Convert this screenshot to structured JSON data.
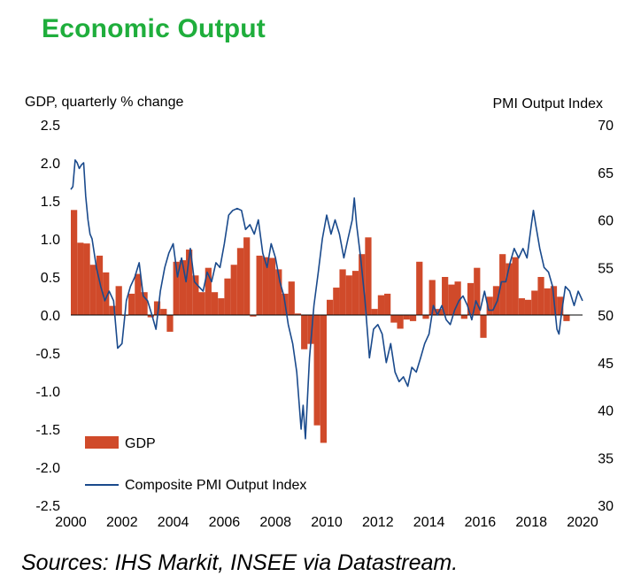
{
  "title": "Economic Output",
  "source": "Sources: IHS Markit, INSEE via Datastream.",
  "chart_data": {
    "type": "bar+line",
    "left_axis_label": "GDP, quarterly % change",
    "right_axis_label": "PMI Output  Index",
    "left_ylim": [
      -2.5,
      2.5
    ],
    "left_ticks": [
      "2.5",
      "2.0",
      "1.5",
      "1.0",
      "0.5",
      "0.0",
      "-0.5",
      "-1.0",
      "-1.5",
      "-2.0",
      "-2.5"
    ],
    "right_ylim": [
      30,
      70
    ],
    "right_ticks": [
      "70",
      "65",
      "60",
      "55",
      "50",
      "45",
      "40",
      "35",
      "30"
    ],
    "x_range": [
      2000,
      2020
    ],
    "x_ticks": [
      "2000",
      "2002",
      "2004",
      "2006",
      "2008",
      "2010",
      "2012",
      "2014",
      "2016",
      "2018",
      "2020"
    ],
    "legend": {
      "gdp": "GDP",
      "pmi": "Composite PMI Output Index"
    },
    "colors": {
      "gdp": "#d04a2a",
      "pmi": "#1a4a8c",
      "title": "#1fae3c"
    },
    "gdp_series": {
      "name": "GDP",
      "start": 2000.0,
      "step": 0.25,
      "values": [
        1.38,
        0.95,
        0.94,
        0.66,
        0.78,
        0.56,
        0.12,
        0.38,
        0.0,
        0.28,
        0.54,
        0.3,
        -0.03,
        0.18,
        0.08,
        -0.22,
        0.7,
        0.72,
        0.86,
        0.52,
        0.3,
        0.62,
        0.3,
        0.22,
        0.48,
        0.66,
        0.88,
        1.02,
        -0.02,
        0.78,
        0.76,
        0.75,
        0.6,
        0.28,
        0.44,
        0.02,
        -0.45,
        -0.38,
        -1.45,
        -1.68,
        0.2,
        0.36,
        0.6,
        0.52,
        0.58,
        0.8,
        1.02,
        0.08,
        0.26,
        0.28,
        -0.1,
        -0.18,
        -0.06,
        -0.08,
        0.7,
        -0.05,
        0.46,
        0.08,
        0.5,
        0.4,
        0.44,
        -0.05,
        0.42,
        0.62,
        -0.3,
        0.24,
        0.38,
        0.8,
        0.68,
        0.76,
        0.22,
        0.2,
        0.32,
        0.5,
        0.35,
        0.38,
        0.24,
        -0.08
      ]
    },
    "pmi_series": {
      "name": "Composite PMI Output Index",
      "x": [
        2000.0,
        2000.08,
        2000.17,
        2000.25,
        2000.33,
        2000.42,
        2000.5,
        2000.58,
        2000.67,
        2000.75,
        2000.83,
        2001.0,
        2001.17,
        2001.33,
        2001.5,
        2001.67,
        2001.83,
        2002.0,
        2002.17,
        2002.33,
        2002.5,
        2002.67,
        2002.83,
        2003.0,
        2003.17,
        2003.33,
        2003.5,
        2003.67,
        2003.83,
        2004.0,
        2004.17,
        2004.33,
        2004.5,
        2004.67,
        2004.83,
        2005.0,
        2005.17,
        2005.33,
        2005.5,
        2005.67,
        2005.83,
        2006.0,
        2006.17,
        2006.33,
        2006.5,
        2006.67,
        2006.83,
        2007.0,
        2007.17,
        2007.33,
        2007.5,
        2007.67,
        2007.83,
        2008.0,
        2008.17,
        2008.33,
        2008.5,
        2008.67,
        2008.83,
        2009.0,
        2009.08,
        2009.17,
        2009.33,
        2009.5,
        2009.67,
        2009.83,
        2010.0,
        2010.17,
        2010.33,
        2010.5,
        2010.67,
        2010.83,
        2011.0,
        2011.08,
        2011.17,
        2011.33,
        2011.5,
        2011.67,
        2011.83,
        2012.0,
        2012.17,
        2012.33,
        2012.5,
        2012.67,
        2012.83,
        2013.0,
        2013.17,
        2013.33,
        2013.5,
        2013.67,
        2013.83,
        2014.0,
        2014.17,
        2014.33,
        2014.5,
        2014.67,
        2014.83,
        2015.0,
        2015.17,
        2015.33,
        2015.5,
        2015.67,
        2015.83,
        2016.0,
        2016.17,
        2016.33,
        2016.5,
        2016.67,
        2016.83,
        2017.0,
        2017.17,
        2017.33,
        2017.5,
        2017.67,
        2017.83,
        2018.0,
        2018.08,
        2018.17,
        2018.33,
        2018.5,
        2018.67,
        2018.83,
        2019.0,
        2019.08,
        2019.17,
        2019.33,
        2019.5,
        2019.67,
        2019.83,
        2020.0
      ],
      "values": [
        63.2,
        63.5,
        66.3,
        66.0,
        65.4,
        65.8,
        66.0,
        62.5,
        60.0,
        58.5,
        58.0,
        55.0,
        53.0,
        51.5,
        52.5,
        51.5,
        46.5,
        47.0,
        51.5,
        53.0,
        54.0,
        55.5,
        52.0,
        51.5,
        50.0,
        48.5,
        52.5,
        55.0,
        56.5,
        57.5,
        54.0,
        56.0,
        53.5,
        57.0,
        53.5,
        53.0,
        52.5,
        54.5,
        53.5,
        55.5,
        55.0,
        57.5,
        60.5,
        61.0,
        61.2,
        61.0,
        59.0,
        59.5,
        58.5,
        60.0,
        56.5,
        55.0,
        57.5,
        56.0,
        53.5,
        52.0,
        49.0,
        47.0,
        44.0,
        38.0,
        40.5,
        37.0,
        45.5,
        51.0,
        54.5,
        58.0,
        60.5,
        58.5,
        60.0,
        58.5,
        56.0,
        58.0,
        60.0,
        62.3,
        59.5,
        56.0,
        51.5,
        45.5,
        48.5,
        49.0,
        48.0,
        45.0,
        47.0,
        44.0,
        43.0,
        43.5,
        42.5,
        44.5,
        44.0,
        45.5,
        47.0,
        48.0,
        51.0,
        50.0,
        51.0,
        49.5,
        49.0,
        50.5,
        51.5,
        52.0,
        51.0,
        49.5,
        51.5,
        50.5,
        52.5,
        50.5,
        50.5,
        51.5,
        53.5,
        53.5,
        55.5,
        57.0,
        56.0,
        57.0,
        56.0,
        59.5,
        61.0,
        59.5,
        57.0,
        55.0,
        54.5,
        53.0,
        48.5,
        48.0,
        50.0,
        53.0,
        52.5,
        51.0,
        52.5,
        51.5
      ]
    }
  }
}
